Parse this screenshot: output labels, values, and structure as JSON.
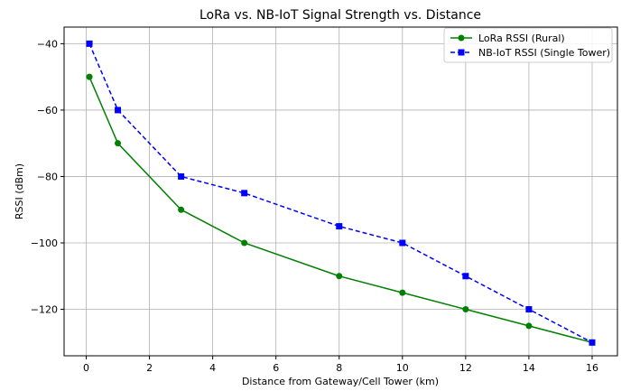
{
  "chart_data": {
    "type": "line",
    "title": "LoRa vs. NB-IoT Signal Strength vs. Distance",
    "xlabel": "Distance from Gateway/Cell Tower (km)",
    "ylabel": "RSSI (dBm)",
    "xlim": [
      -0.7,
      16.8
    ],
    "ylim": [
      -134,
      -35
    ],
    "xticks": [
      0,
      2,
      4,
      6,
      8,
      10,
      12,
      14,
      16
    ],
    "xtick_labels": [
      "0",
      "2",
      "4",
      "6",
      "8",
      "10",
      "12",
      "14",
      "16"
    ],
    "yticks": [
      -40,
      -60,
      -80,
      -100,
      -120
    ],
    "ytick_labels": [
      "−40",
      "−60",
      "−80",
      "−100",
      "−120"
    ],
    "grid": true,
    "legend_position": "top-right",
    "series": [
      {
        "name": "LoRa RSSI (Rural)",
        "color": "#008000",
        "marker": "circle",
        "line_style": "solid",
        "x": [
          0.1,
          1,
          3,
          5,
          8,
          10,
          12,
          14,
          16
        ],
        "y": [
          -50,
          -70,
          -90,
          -100,
          -110,
          -115,
          -120,
          -125,
          -130
        ]
      },
      {
        "name": "NB-IoT RSSI (Single Tower)",
        "color": "#0000ff",
        "marker": "square",
        "line_style": "dashed",
        "x": [
          0.1,
          1,
          3,
          5,
          8,
          10,
          12,
          14,
          16
        ],
        "y": [
          -40,
          -60,
          -80,
          -85,
          -95,
          -100,
          -110,
          -120,
          -130
        ]
      }
    ]
  }
}
